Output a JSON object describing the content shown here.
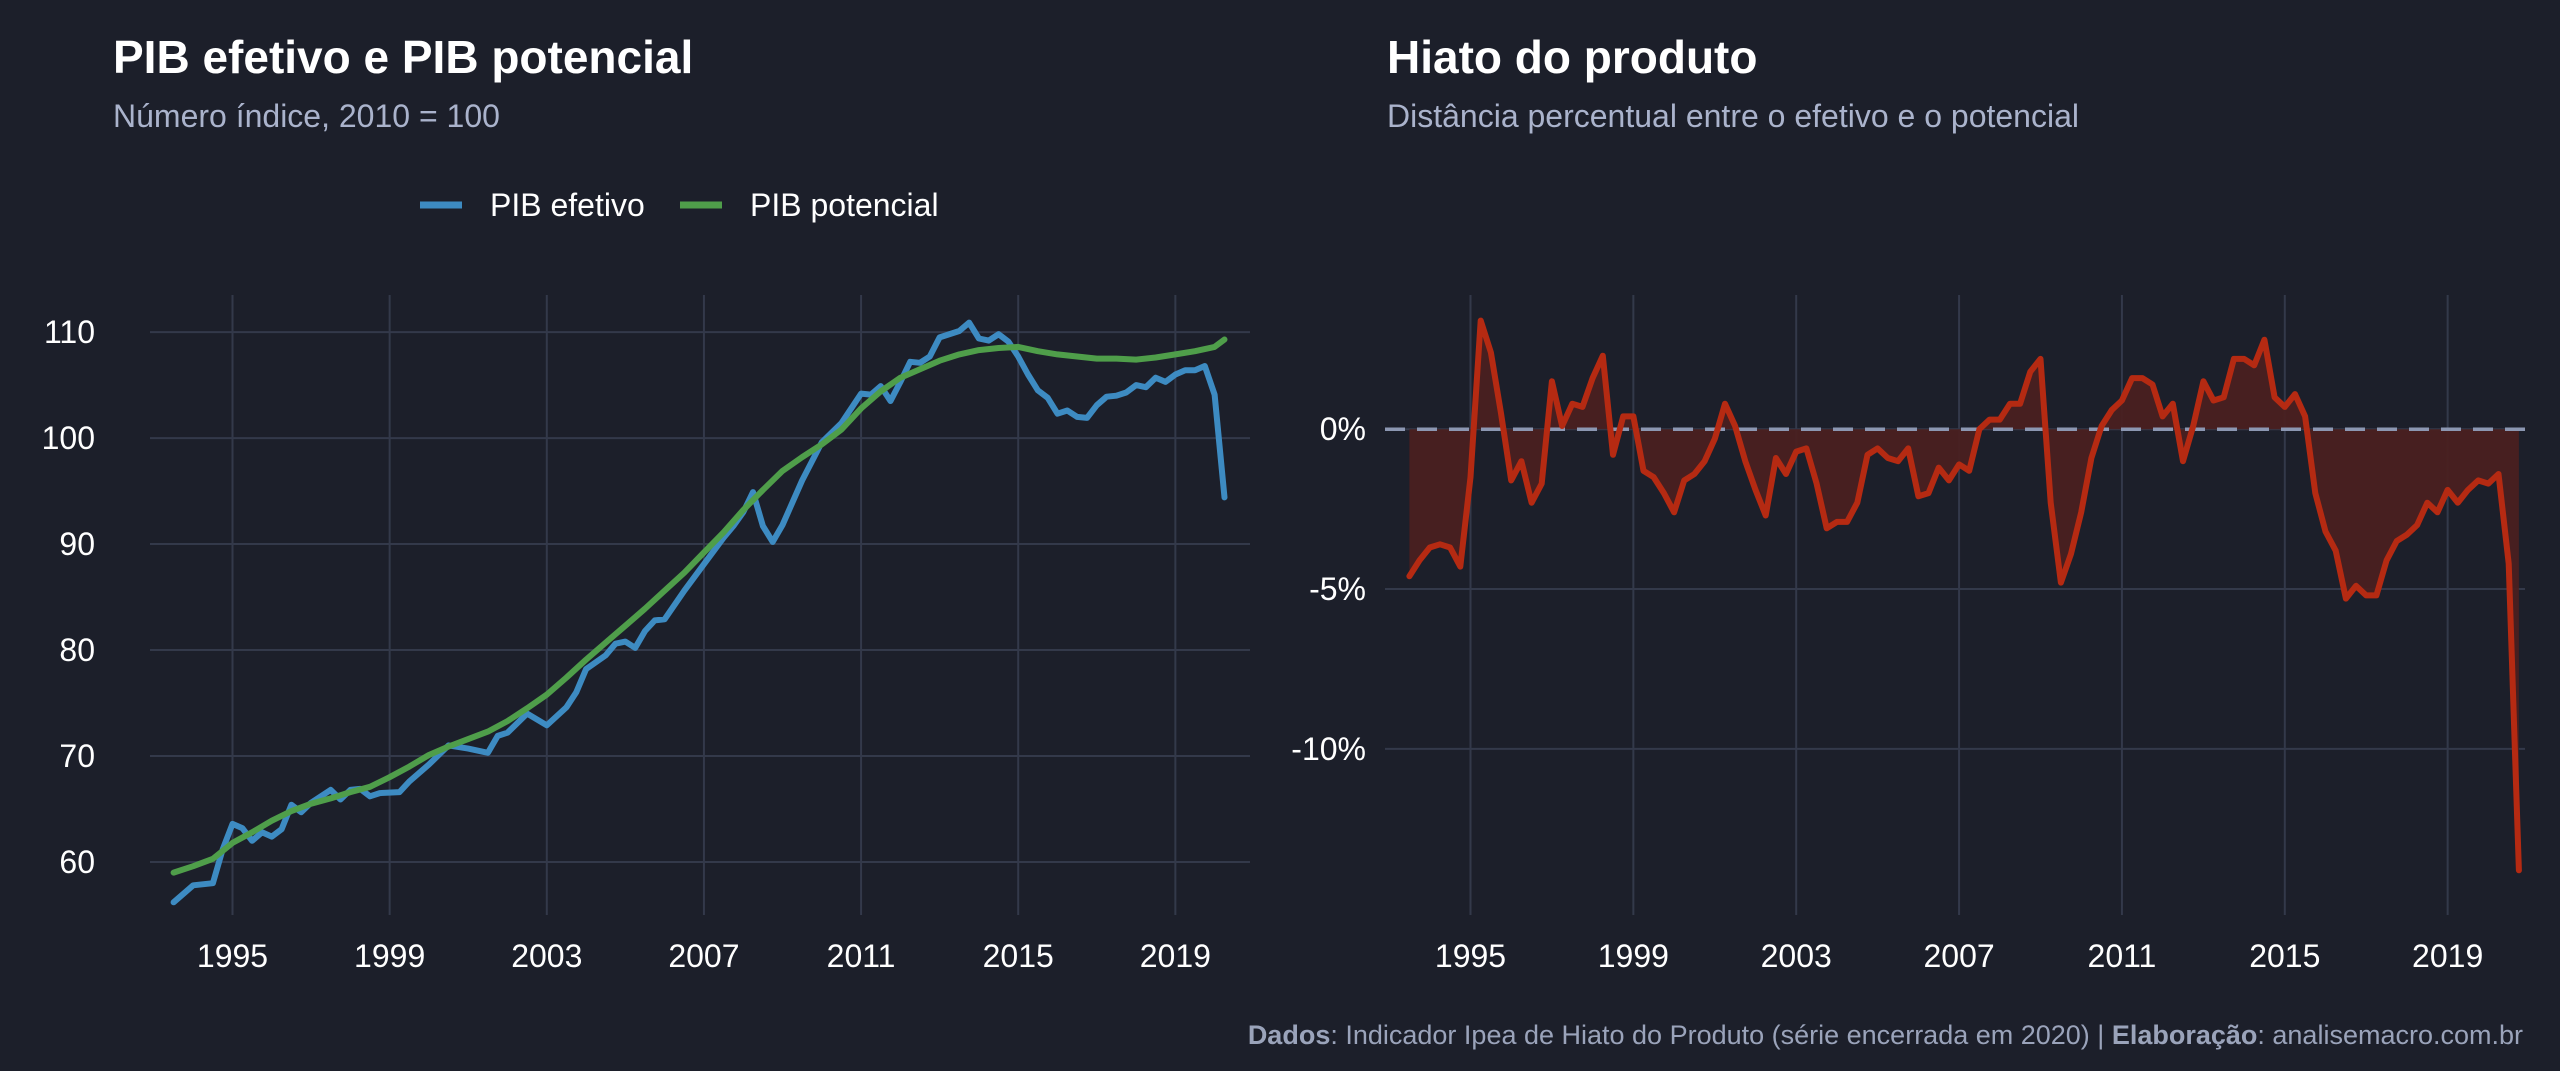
{
  "caption": {
    "dados_label": "Dados",
    "dados_text": ": Indicador Ipea de Hiato do Produto (série encerrada em 2020) | ",
    "elab_label": "Elaboração",
    "elab_text": ": analisemacro.com.br"
  },
  "colors": {
    "background": "#1c1f2a",
    "grid": "#33394a",
    "pib_efetivo": "#3d8bc2",
    "pib_potencial": "#4f9e4a",
    "hiato_line": "#b52a12",
    "hiato_fill": "#4a2020",
    "zero_line": "#8c97b2"
  },
  "chart_data": [
    {
      "type": "line",
      "title": "PIB efetivo e PIB potencial",
      "subtitle": "Número índice, 2010 = 100",
      "legend_position": "top",
      "grid": true,
      "xlim": [
        1992.9,
        2020.9
      ],
      "ylim": [
        55,
        113.5
      ],
      "x_ticks": [
        1995,
        1999,
        2003,
        2007,
        2011,
        2015,
        2019
      ],
      "y_ticks": [
        60,
        70,
        80,
        90,
        100,
        110
      ],
      "series": [
        {
          "name": "PIB efetivo",
          "points": [
            [
              1993.5,
              56.2
            ],
            [
              1994.0,
              57.8
            ],
            [
              1994.5,
              58.0
            ],
            [
              1994.75,
              61.2
            ],
            [
              1995.0,
              63.6
            ],
            [
              1995.25,
              63.2
            ],
            [
              1995.5,
              62.0
            ],
            [
              1995.75,
              62.8
            ],
            [
              1996.0,
              62.4
            ],
            [
              1996.25,
              63.1
            ],
            [
              1996.5,
              65.4
            ],
            [
              1996.75,
              64.7
            ],
            [
              1997.0,
              65.6
            ],
            [
              1997.5,
              66.8
            ],
            [
              1997.75,
              65.9
            ],
            [
              1998.0,
              66.8
            ],
            [
              1998.25,
              66.9
            ],
            [
              1998.5,
              66.2
            ],
            [
              1998.75,
              66.5
            ],
            [
              1999.25,
              66.6
            ],
            [
              1999.5,
              67.6
            ],
            [
              2000.0,
              69.2
            ],
            [
              2000.5,
              71.0
            ],
            [
              2001.0,
              70.7
            ],
            [
              2001.5,
              70.3
            ],
            [
              2001.75,
              71.9
            ],
            [
              2002.0,
              72.2
            ],
            [
              2002.5,
              74.0
            ],
            [
              2003.0,
              72.9
            ],
            [
              2003.5,
              74.6
            ],
            [
              2003.75,
              76.0
            ],
            [
              2004.0,
              78.2
            ],
            [
              2004.5,
              79.5
            ],
            [
              2004.75,
              80.6
            ],
            [
              2005.0,
              80.8
            ],
            [
              2005.25,
              80.2
            ],
            [
              2005.5,
              81.8
            ],
            [
              2005.75,
              82.8
            ],
            [
              2006.0,
              82.9
            ],
            [
              2006.5,
              85.6
            ],
            [
              2007.0,
              88.1
            ],
            [
              2007.5,
              90.6
            ],
            [
              2007.75,
              91.7
            ],
            [
              2008.0,
              93.0
            ],
            [
              2008.25,
              94.9
            ],
            [
              2008.5,
              91.7
            ],
            [
              2008.75,
              90.2
            ],
            [
              2009.0,
              91.8
            ],
            [
              2009.5,
              96.0
            ],
            [
              2010.0,
              99.6
            ],
            [
              2010.5,
              101.4
            ],
            [
              2011.0,
              104.2
            ],
            [
              2011.25,
              104.1
            ],
            [
              2011.5,
              104.9
            ],
            [
              2011.75,
              103.5
            ],
            [
              2012.0,
              105.3
            ],
            [
              2012.25,
              107.2
            ],
            [
              2012.5,
              107.1
            ],
            [
              2012.75,
              107.7
            ],
            [
              2013.0,
              109.5
            ],
            [
              2013.5,
              110.1
            ],
            [
              2013.75,
              110.9
            ],
            [
              2014.0,
              109.4
            ],
            [
              2014.25,
              109.2
            ],
            [
              2014.5,
              109.8
            ],
            [
              2014.75,
              109.1
            ],
            [
              2015.0,
              107.7
            ],
            [
              2015.25,
              106.0
            ],
            [
              2015.5,
              104.5
            ],
            [
              2015.75,
              103.8
            ],
            [
              2016.0,
              102.3
            ],
            [
              2016.25,
              102.6
            ],
            [
              2016.5,
              102.0
            ],
            [
              2016.75,
              101.9
            ],
            [
              2017.0,
              103.1
            ],
            [
              2017.25,
              103.9
            ],
            [
              2017.5,
              104.0
            ],
            [
              2017.75,
              104.3
            ],
            [
              2018.0,
              105.0
            ],
            [
              2018.25,
              104.8
            ],
            [
              2018.5,
              105.7
            ],
            [
              2018.75,
              105.3
            ],
            [
              2019.0,
              106.0
            ],
            [
              2019.25,
              106.4
            ],
            [
              2019.5,
              106.4
            ],
            [
              2019.75,
              106.8
            ],
            [
              2020.0,
              104.1
            ],
            [
              2020.25,
              94.4
            ]
          ]
        },
        {
          "name": "PIB potencial",
          "points": [
            [
              1993.5,
              59.0
            ],
            [
              1994.0,
              59.6
            ],
            [
              1994.5,
              60.3
            ],
            [
              1995.0,
              61.8
            ],
            [
              1995.5,
              62.8
            ],
            [
              1996.0,
              63.9
            ],
            [
              1996.5,
              64.8
            ],
            [
              1997.0,
              65.5
            ],
            [
              1997.5,
              66.0
            ],
            [
              1998.0,
              66.6
            ],
            [
              1998.5,
              67.1
            ],
            [
              1999.0,
              68.0
            ],
            [
              1999.5,
              69.0
            ],
            [
              2000.0,
              70.1
            ],
            [
              2000.5,
              70.9
            ],
            [
              2001.0,
              71.6
            ],
            [
              2001.5,
              72.3
            ],
            [
              2002.0,
              73.3
            ],
            [
              2002.5,
              74.5
            ],
            [
              2003.0,
              75.8
            ],
            [
              2003.5,
              77.4
            ],
            [
              2004.0,
              79.1
            ],
            [
              2004.5,
              80.7
            ],
            [
              2005.0,
              82.3
            ],
            [
              2005.5,
              83.9
            ],
            [
              2006.0,
              85.6
            ],
            [
              2006.5,
              87.3
            ],
            [
              2007.0,
              89.2
            ],
            [
              2007.5,
              91.1
            ],
            [
              2008.0,
              93.2
            ],
            [
              2008.5,
              95.1
            ],
            [
              2009.0,
              96.9
            ],
            [
              2009.5,
              98.2
            ],
            [
              2010.0,
              99.4
            ],
            [
              2010.5,
              100.8
            ],
            [
              2011.0,
              102.8
            ],
            [
              2011.5,
              104.4
            ],
            [
              2012.0,
              105.7
            ],
            [
              2012.5,
              106.5
            ],
            [
              2013.0,
              107.3
            ],
            [
              2013.5,
              107.9
            ],
            [
              2014.0,
              108.3
            ],
            [
              2014.5,
              108.5
            ],
            [
              2015.0,
              108.6
            ],
            [
              2015.5,
              108.2
            ],
            [
              2016.0,
              107.9
            ],
            [
              2016.5,
              107.7
            ],
            [
              2017.0,
              107.5
            ],
            [
              2017.5,
              107.5
            ],
            [
              2018.0,
              107.4
            ],
            [
              2018.5,
              107.6
            ],
            [
              2019.0,
              107.9
            ],
            [
              2019.5,
              108.2
            ],
            [
              2020.0,
              108.6
            ],
            [
              2020.25,
              109.3
            ]
          ]
        }
      ]
    },
    {
      "type": "area",
      "title": "Hiato do produto",
      "subtitle": "Distância percentual entre o efetivo e o potencial",
      "grid": true,
      "zero_line": "dashed",
      "xlim": [
        1992.9,
        2020.9
      ],
      "ylim": [
        -15.2,
        4.2
      ],
      "x_ticks": [
        1995,
        1999,
        2003,
        2007,
        2011,
        2015,
        2019
      ],
      "y_ticks": [
        0,
        -5,
        -10
      ],
      "y_tick_labels": [
        "0%",
        "-5%",
        "-10%"
      ],
      "series": [
        {
          "name": "",
          "points": [
            [
              1993.5,
              -4.6
            ],
            [
              1993.75,
              -4.1
            ],
            [
              1994.0,
              -3.7
            ],
            [
              1994.25,
              -3.6
            ],
            [
              1994.5,
              -3.7
            ],
            [
              1994.75,
              -4.3
            ],
            [
              1995.0,
              -1.5
            ],
            [
              1995.25,
              3.4
            ],
            [
              1995.5,
              2.4
            ],
            [
              1995.75,
              0.5
            ],
            [
              1996.0,
              -1.6
            ],
            [
              1996.25,
              -1.0
            ],
            [
              1996.5,
              -2.3
            ],
            [
              1996.75,
              -1.7
            ],
            [
              1997.0,
              1.5
            ],
            [
              1997.25,
              0.1
            ],
            [
              1997.5,
              0.8
            ],
            [
              1997.75,
              0.7
            ],
            [
              1998.0,
              1.6
            ],
            [
              1998.25,
              2.3
            ],
            [
              1998.5,
              -0.8
            ],
            [
              1998.75,
              0.4
            ],
            [
              1999.0,
              0.4
            ],
            [
              1999.25,
              -1.3
            ],
            [
              1999.5,
              -1.5
            ],
            [
              1999.75,
              -2.0
            ],
            [
              2000.0,
              -2.6
            ],
            [
              2000.25,
              -1.6
            ],
            [
              2000.5,
              -1.4
            ],
            [
              2000.75,
              -1.0
            ],
            [
              2001.0,
              -0.3
            ],
            [
              2001.25,
              0.8
            ],
            [
              2001.5,
              0.1
            ],
            [
              2001.75,
              -1.0
            ],
            [
              2002.0,
              -1.9
            ],
            [
              2002.25,
              -2.7
            ],
            [
              2002.5,
              -0.9
            ],
            [
              2002.75,
              -1.4
            ],
            [
              2003.0,
              -0.7
            ],
            [
              2003.25,
              -0.6
            ],
            [
              2003.5,
              -1.7
            ],
            [
              2003.75,
              -3.1
            ],
            [
              2004.0,
              -2.9
            ],
            [
              2004.25,
              -2.9
            ],
            [
              2004.5,
              -2.3
            ],
            [
              2004.75,
              -0.8
            ],
            [
              2005.0,
              -0.6
            ],
            [
              2005.25,
              -0.9
            ],
            [
              2005.5,
              -1.0
            ],
            [
              2005.75,
              -0.6
            ],
            [
              2006.0,
              -2.1
            ],
            [
              2006.25,
              -2.0
            ],
            [
              2006.5,
              -1.2
            ],
            [
              2006.75,
              -1.6
            ],
            [
              2007.0,
              -1.1
            ],
            [
              2007.25,
              -1.3
            ],
            [
              2007.5,
              0.0
            ],
            [
              2007.75,
              0.3
            ],
            [
              2008.0,
              0.3
            ],
            [
              2008.25,
              0.8
            ],
            [
              2008.5,
              0.8
            ],
            [
              2008.75,
              1.8
            ],
            [
              2009.0,
              2.2
            ],
            [
              2009.25,
              -2.3
            ],
            [
              2009.5,
              -4.8
            ],
            [
              2009.75,
              -3.9
            ],
            [
              2010.0,
              -2.6
            ],
            [
              2010.25,
              -0.9
            ],
            [
              2010.5,
              0.1
            ],
            [
              2010.75,
              0.6
            ],
            [
              2011.0,
              0.9
            ],
            [
              2011.25,
              1.6
            ],
            [
              2011.5,
              1.6
            ],
            [
              2011.75,
              1.4
            ],
            [
              2012.0,
              0.4
            ],
            [
              2012.25,
              0.8
            ],
            [
              2012.5,
              -1.0
            ],
            [
              2012.75,
              0.1
            ],
            [
              2013.0,
              1.5
            ],
            [
              2013.25,
              0.9
            ],
            [
              2013.5,
              1.0
            ],
            [
              2013.75,
              2.2
            ],
            [
              2014.0,
              2.2
            ],
            [
              2014.25,
              2.0
            ],
            [
              2014.5,
              2.8
            ],
            [
              2014.75,
              1.0
            ],
            [
              2015.0,
              0.7
            ],
            [
              2015.25,
              1.1
            ],
            [
              2015.5,
              0.4
            ],
            [
              2015.75,
              -2.0
            ],
            [
              2016.0,
              -3.2
            ],
            [
              2016.25,
              -3.8
            ],
            [
              2016.5,
              -5.3
            ],
            [
              2016.75,
              -4.9
            ],
            [
              2017.0,
              -5.2
            ],
            [
              2017.25,
              -5.2
            ],
            [
              2017.5,
              -4.1
            ],
            [
              2017.75,
              -3.5
            ],
            [
              2018.0,
              -3.3
            ],
            [
              2018.25,
              -3.0
            ],
            [
              2018.5,
              -2.3
            ],
            [
              2018.75,
              -2.6
            ],
            [
              2019.0,
              -1.9
            ],
            [
              2019.25,
              -2.3
            ],
            [
              2019.5,
              -1.9
            ],
            [
              2019.75,
              -1.6
            ],
            [
              2020.0,
              -1.7
            ],
            [
              2020.25,
              -1.4
            ],
            [
              2020.5,
              -4.2
            ],
            [
              2020.75,
              -13.8
            ]
          ]
        }
      ]
    }
  ]
}
